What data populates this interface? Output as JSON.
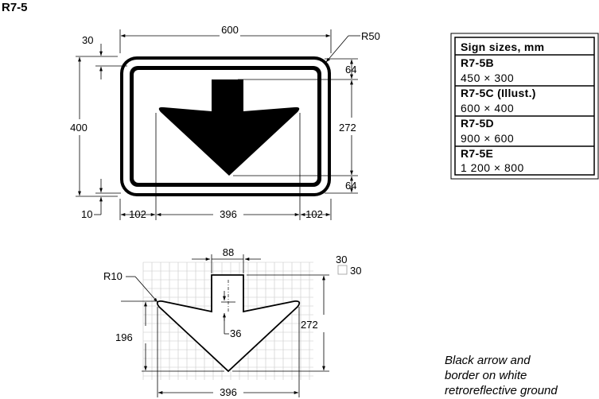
{
  "title": "R7-5",
  "sign_dims": {
    "width": "600",
    "height": "400",
    "border_gap": "30",
    "bottom_gap": "10",
    "radius": "R50",
    "top_margin": "64",
    "arrow_height": "272",
    "bottom_margin": "64",
    "left_margin": "102",
    "arrow_width": "396",
    "right_margin": "102"
  },
  "arrow_detail": {
    "shaft_width": "88",
    "grid_cell_a": "30",
    "grid_cell_b": "30",
    "radius": "R10",
    "wing_height": "196",
    "notch": "36",
    "total_height": "272",
    "total_width": "396"
  },
  "sizes_table": {
    "header": "Sign sizes, mm",
    "rows": [
      {
        "code": "R7-5B",
        "size": "450 × 300"
      },
      {
        "code": "R7-5C (Illust.)",
        "size": "600 × 400"
      },
      {
        "code": "R7-5D",
        "size": "900 × 600"
      },
      {
        "code": "R7-5E",
        "size": "1 200 × 800"
      }
    ]
  },
  "note_lines": [
    "Black arrow and",
    "border on white",
    "retroreflective ground"
  ]
}
